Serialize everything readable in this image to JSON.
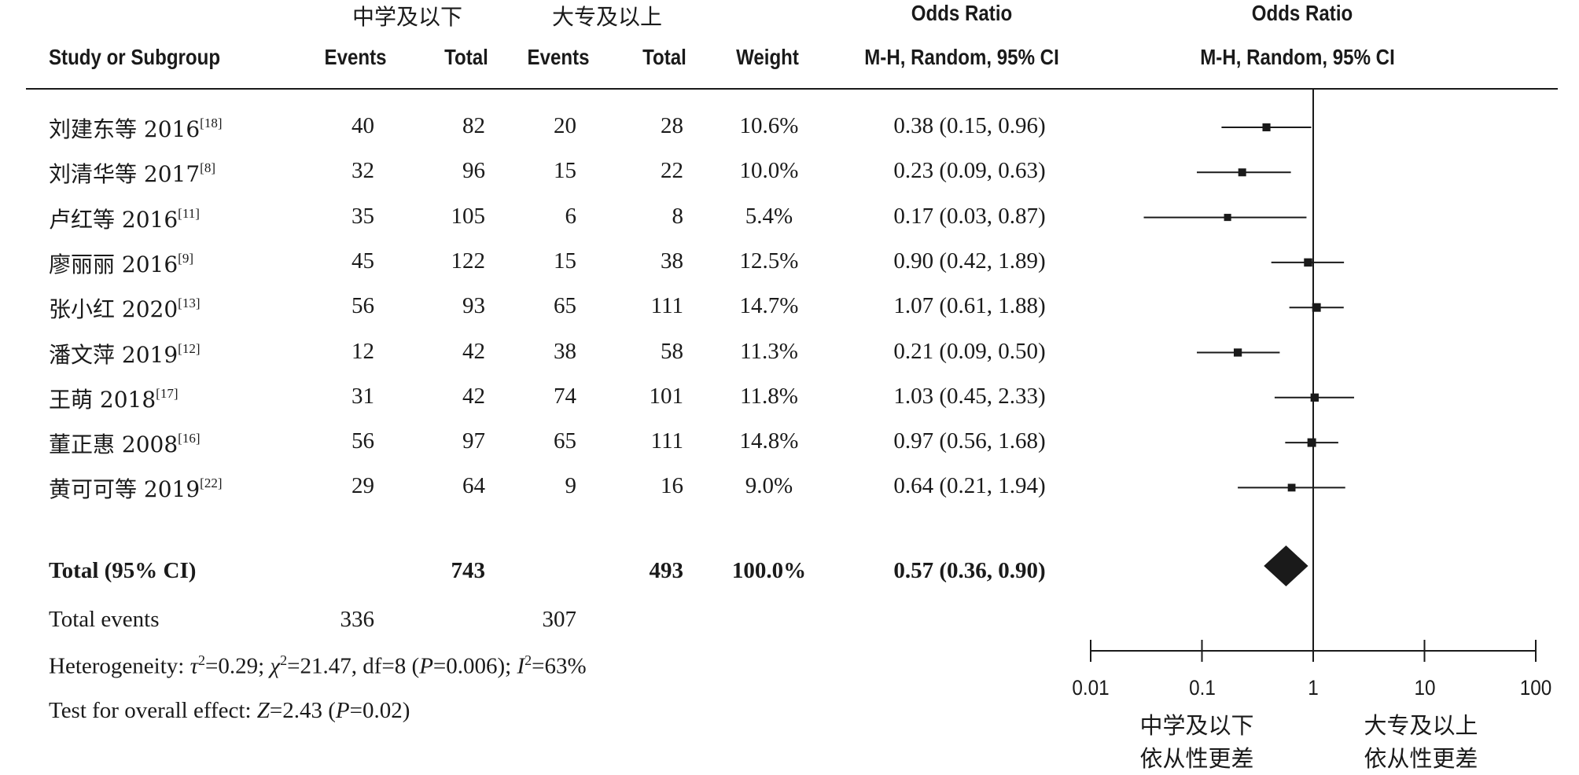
{
  "header": {
    "group1": "中学及以下",
    "group2": "大专及以上",
    "or_title_cols": "Odds Ratio",
    "or_title_plot": "Odds Ratio",
    "study_col": "Study or Subgroup",
    "events1": "Events",
    "total1": "Total",
    "events2": "Events",
    "total2": "Total",
    "weight": "Weight",
    "method_cols": "M-H, Random, 95% CI",
    "method_plot": "M-H, Random, 95% CI"
  },
  "rows": [
    {
      "name": "刘建东等 2016",
      "ref": "[18]",
      "e1": "40",
      "t1": "82",
      "e2": "20",
      "t2": "28",
      "w": "10.6%",
      "ci": "0.38 (0.15, 0.96)"
    },
    {
      "name": "刘清华等 2017",
      "ref": "[8]",
      "e1": "32",
      "t1": "96",
      "e2": "15",
      "t2": "22",
      "w": "10.0%",
      "ci": "0.23 (0.09, 0.63)"
    },
    {
      "name": "卢红等 2016",
      "ref": "[11]",
      "e1": "35",
      "t1": "105",
      "e2": "6",
      "t2": "8",
      "w": "5.4%",
      "ci": "0.17 (0.03, 0.87)"
    },
    {
      "name": "廖丽丽 2016",
      "ref": "[9]",
      "e1": "45",
      "t1": "122",
      "e2": "15",
      "t2": "38",
      "w": "12.5%",
      "ci": "0.90 (0.42, 1.89)"
    },
    {
      "name": "张小红 2020",
      "ref": "[13]",
      "e1": "56",
      "t1": "93",
      "e2": "65",
      "t2": "111",
      "w": "14.7%",
      "ci": "1.07 (0.61, 1.88)"
    },
    {
      "name": "潘文萍 2019",
      "ref": "[12]",
      "e1": "12",
      "t1": "42",
      "e2": "38",
      "t2": "58",
      "w": "11.3%",
      "ci": "0.21 (0.09, 0.50)"
    },
    {
      "name": "王萌 2018",
      "ref": "[17]",
      "e1": "31",
      "t1": "42",
      "e2": "74",
      "t2": "101",
      "w": "11.8%",
      "ci": "1.03 (0.45, 2.33)"
    },
    {
      "name": "董正惠 2008",
      "ref": "[16]",
      "e1": "56",
      "t1": "97",
      "e2": "65",
      "t2": "111",
      "w": "14.8%",
      "ci": "0.97 (0.56, 1.68)"
    },
    {
      "name": "黄可可等 2019",
      "ref": "[22]",
      "e1": "29",
      "t1": "64",
      "e2": "9",
      "t2": "16",
      "w": "9.0%",
      "ci": "0.64 (0.21, 1.94)"
    }
  ],
  "total": {
    "label": "Total (95% CI)",
    "t1": "743",
    "t2": "493",
    "w": "100.0%",
    "ci": "0.57 (0.36, 0.90)"
  },
  "total_events": {
    "label": "Total events",
    "e1": "336",
    "e2": "307"
  },
  "heterogeneity": {
    "prefix": "Heterogeneity: ",
    "tau_sym": "τ",
    "tau_val": "=0.29; ",
    "chi_sym": "χ",
    "chi_val": "=21.47, df=8 (",
    "p_sym": "P",
    "p_val": "=0.006); ",
    "i_sym": "I",
    "i_val": "=63%",
    "sup2": "2"
  },
  "overall": {
    "prefix": "Test for overall effect: ",
    "z_sym": "Z",
    "z_val": "=2.43 (",
    "p_sym": "P",
    "p_val": "=0.02)"
  },
  "axis": {
    "tick_labels": [
      "0.01",
      "0.1",
      "1",
      "10",
      "100"
    ],
    "favors_left": [
      "中学及以下",
      "依从性更差"
    ],
    "favors_right": [
      "大专及以上",
      "依从性更差"
    ]
  },
  "chart_data": {
    "type": "forest",
    "scale": "log",
    "xlim": [
      0.01,
      100
    ],
    "ticks": [
      0.01,
      0.1,
      1,
      10,
      100
    ],
    "null_line": 1,
    "studies": [
      {
        "or": 0.38,
        "lo": 0.15,
        "hi": 0.96,
        "weight": 10.6
      },
      {
        "or": 0.23,
        "lo": 0.09,
        "hi": 0.63,
        "weight": 10.0
      },
      {
        "or": 0.17,
        "lo": 0.03,
        "hi": 0.87,
        "weight": 5.4
      },
      {
        "or": 0.9,
        "lo": 0.42,
        "hi": 1.89,
        "weight": 12.5
      },
      {
        "or": 1.07,
        "lo": 0.61,
        "hi": 1.88,
        "weight": 14.7
      },
      {
        "or": 0.21,
        "lo": 0.09,
        "hi": 0.5,
        "weight": 11.3
      },
      {
        "or": 1.03,
        "lo": 0.45,
        "hi": 2.33,
        "weight": 11.8
      },
      {
        "or": 0.97,
        "lo": 0.56,
        "hi": 1.68,
        "weight": 14.8
      },
      {
        "or": 0.64,
        "lo": 0.21,
        "hi": 1.94,
        "weight": 9.0
      }
    ],
    "pooled": {
      "or": 0.57,
      "lo": 0.36,
      "hi": 0.9
    }
  }
}
